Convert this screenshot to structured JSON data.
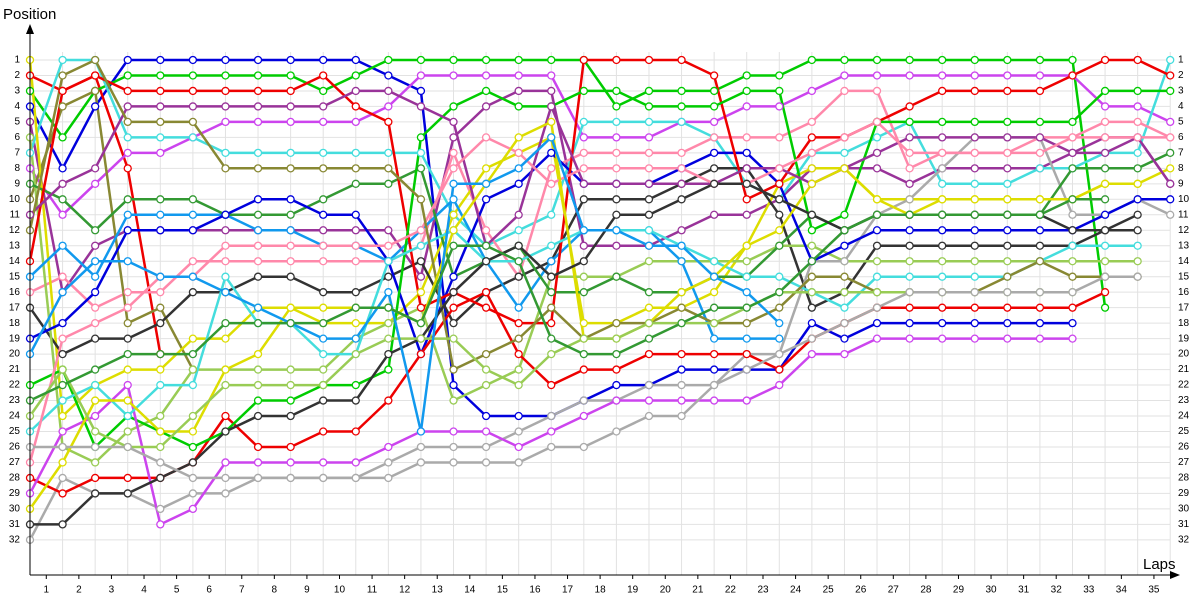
{
  "chart_data": {
    "type": "line",
    "y_label": "Position",
    "x_label": "Laps",
    "x": [
      0,
      1,
      2,
      3,
      4,
      5,
      6,
      7,
      8,
      9,
      10,
      11,
      12,
      13,
      14,
      15,
      16,
      17,
      18,
      19,
      20,
      21,
      22,
      23,
      24,
      25,
      26,
      27,
      28,
      29,
      30,
      31,
      32,
      33,
      34,
      35
    ],
    "xlim": [
      0,
      35.3
    ],
    "ylim": [
      34.27,
      -1.26
    ],
    "grid": true,
    "yticks": [
      1,
      2,
      3,
      4,
      5,
      6,
      7,
      8,
      9,
      10,
      11,
      12,
      13,
      14,
      15,
      16,
      17,
      18,
      19,
      20,
      21,
      22,
      23,
      24,
      25,
      26,
      27,
      28,
      29,
      30,
      31,
      32
    ],
    "xticks": [
      {
        "value": 0.5,
        "label": "1"
      },
      {
        "value": 1.5,
        "label": "2"
      },
      {
        "value": 2.5,
        "label": "3"
      },
      {
        "value": 3.5,
        "label": "4"
      },
      {
        "value": 4.5,
        "label": "5"
      },
      {
        "value": 5.5,
        "label": "6"
      },
      {
        "value": 6.5,
        "label": "7"
      },
      {
        "value": 7.5,
        "label": "8"
      },
      {
        "value": 8.5,
        "label": "9"
      },
      {
        "value": 9.5,
        "label": "10"
      },
      {
        "value": 10.5,
        "label": "11"
      },
      {
        "value": 11.5,
        "label": "12"
      },
      {
        "value": 12.5,
        "label": "13"
      },
      {
        "value": 13.5,
        "label": "14"
      },
      {
        "value": 14.5,
        "label": "15"
      },
      {
        "value": 15.5,
        "label": "16"
      },
      {
        "value": 16.5,
        "label": "17"
      },
      {
        "value": 17.5,
        "label": "18"
      },
      {
        "value": 18.5,
        "label": "19"
      },
      {
        "value": 19.5,
        "label": "20"
      },
      {
        "value": 20.5,
        "label": "21"
      },
      {
        "value": 21.5,
        "label": "22"
      },
      {
        "value": 22.5,
        "label": "23"
      },
      {
        "value": 23.5,
        "label": "24"
      },
      {
        "value": 24.5,
        "label": "25"
      },
      {
        "value": 25.5,
        "label": "26"
      },
      {
        "value": 26.5,
        "label": "27"
      },
      {
        "value": 27.5,
        "label": "28"
      },
      {
        "value": 28.5,
        "label": "29"
      },
      {
        "value": 29.5,
        "label": "30"
      },
      {
        "value": 30.5,
        "label": "31"
      },
      {
        "value": 31.5,
        "label": "32"
      },
      {
        "value": 32.5,
        "label": "33"
      },
      {
        "value": 33.5,
        "label": "34"
      },
      {
        "value": 34.5,
        "label": "35"
      }
    ],
    "series": [
      {
        "color": "#0000dd",
        "values": [
          4,
          8,
          4,
          1,
          1,
          1,
          1,
          1,
          1,
          1,
          1,
          2,
          3,
          22,
          24,
          24,
          24,
          23,
          22,
          22,
          21,
          21,
          21,
          21,
          18,
          19,
          18,
          18,
          18,
          18,
          18,
          18,
          18,
          null,
          null,
          null
        ]
      },
      {
        "color": "#ee0000",
        "values": [
          2,
          3,
          2,
          8,
          20,
          null,
          null,
          null,
          null,
          null,
          null,
          null,
          null,
          null,
          null,
          null,
          null,
          null,
          null,
          null,
          null,
          null,
          null,
          null,
          null,
          null,
          null,
          null,
          null,
          null,
          null,
          null,
          null,
          null,
          null,
          null
        ]
      },
      {
        "color": "#00cc00",
        "values": [
          3,
          6,
          3,
          2,
          2,
          2,
          2,
          2,
          2,
          3,
          2,
          1,
          1,
          1,
          1,
          1,
          1,
          1,
          4,
          3,
          3,
          3,
          2,
          2,
          1,
          1,
          1,
          1,
          1,
          1,
          1,
          1,
          1,
          17,
          null,
          null
        ]
      },
      {
        "color": "#993399",
        "values": [
          5,
          16,
          13,
          12,
          12,
          12,
          12,
          12,
          12,
          12,
          12,
          12,
          15,
          6,
          4,
          3,
          3,
          13,
          13,
          13,
          12,
          11,
          11,
          10,
          8,
          8,
          8,
          9,
          8,
          8,
          8,
          8,
          7,
          6,
          6,
          9
        ]
      },
      {
        "color": "#cc44ee",
        "values": [
          8,
          11,
          9,
          7,
          7,
          6,
          5,
          5,
          5,
          5,
          5,
          4,
          2,
          2,
          2,
          2,
          2,
          6,
          6,
          6,
          5,
          5,
          4,
          4,
          3,
          2,
          2,
          2,
          2,
          2,
          2,
          2,
          2,
          4,
          4,
          5
        ]
      },
      {
        "color": "#44dddd",
        "values": [
          7,
          1,
          1,
          6,
          6,
          6,
          7,
          7,
          7,
          7,
          7,
          7,
          7,
          11,
          13,
          12,
          11,
          5,
          5,
          5,
          5,
          6,
          9,
          10,
          7,
          7,
          6,
          5,
          9,
          9,
          9,
          8,
          8,
          7,
          7,
          1
        ]
      },
      {
        "color": "#ff88aa",
        "values": [
          16,
          15,
          17,
          16,
          16,
          14,
          14,
          14,
          14,
          14,
          14,
          14,
          13,
          7,
          12,
          15,
          8,
          7,
          7,
          7,
          7,
          6,
          6,
          6,
          5,
          3,
          3,
          8,
          7,
          7,
          7,
          6,
          6,
          5,
          5,
          6
        ]
      },
      {
        "color": "#888833",
        "values": [
          10,
          4,
          3,
          18,
          17,
          21,
          null,
          null,
          null,
          null,
          null,
          null,
          null,
          null,
          null,
          null,
          null,
          null,
          null,
          null,
          null,
          null,
          null,
          null,
          null,
          null,
          null,
          null,
          null,
          null,
          null,
          null,
          null,
          null,
          null,
          null
        ]
      },
      {
        "color": "#dddd00",
        "values": [
          1,
          24,
          22,
          21,
          21,
          19,
          19,
          17,
          17,
          18,
          18,
          18,
          16,
          11,
          8,
          7,
          6,
          18,
          18,
          17,
          17,
          16,
          13,
          9,
          8,
          8,
          10,
          10,
          10,
          10,
          10,
          10,
          10,
          9,
          9,
          8
        ]
      },
      {
        "color": "#333333",
        "values": [
          17,
          20,
          19,
          19,
          18,
          16,
          16,
          15,
          15,
          16,
          16,
          15,
          14,
          18,
          16,
          15,
          14,
          10,
          10,
          10,
          9,
          8,
          8,
          11,
          17,
          16,
          13,
          13,
          13,
          13,
          13,
          13,
          13,
          12,
          12,
          null
        ]
      },
      {
        "color": "#99cc55",
        "values": [
          6,
          26,
          27,
          25,
          24,
          21,
          21,
          21,
          21,
          21,
          19,
          18,
          17,
          23,
          22,
          21,
          15,
          15,
          15,
          14,
          14,
          14,
          14,
          13,
          13,
          14,
          14,
          14,
          14,
          14,
          14,
          14,
          14,
          14,
          14,
          null
        ]
      },
      {
        "color": "#1199ee",
        "values": [
          15,
          13,
          15,
          11,
          11,
          11,
          11,
          12,
          12,
          13,
          13,
          14,
          12,
          10,
          14,
          17,
          14,
          12,
          12,
          12,
          14,
          19,
          19,
          19,
          null,
          null,
          null,
          null,
          null,
          null,
          null,
          null,
          null,
          null,
          null,
          null
        ]
      },
      {
        "color": "#aaaaaa",
        "values": [
          32,
          28,
          29,
          29,
          30,
          29,
          29,
          28,
          28,
          28,
          28,
          27,
          26,
          26,
          26,
          25,
          24,
          23,
          23,
          22,
          22,
          22,
          20,
          20,
          14,
          14,
          11,
          10,
          8,
          6,
          6,
          6,
          11,
          11,
          10,
          11
        ]
      },
      {
        "color": "#339933",
        "values": [
          9,
          10,
          12,
          10,
          10,
          10,
          11,
          11,
          11,
          10,
          9,
          9,
          8,
          15,
          14,
          13,
          16,
          16,
          15,
          16,
          16,
          15,
          15,
          13,
          11,
          12,
          11,
          11,
          11,
          11,
          11,
          11,
          8,
          8,
          8,
          7
        ]
      },
      {
        "color": "#0000dd",
        "values": [
          19,
          18,
          16,
          12,
          12,
          12,
          11,
          10,
          10,
          11,
          11,
          14,
          20,
          15,
          10,
          9,
          7,
          9,
          9,
          9,
          8,
          7,
          7,
          9,
          14,
          13,
          12,
          12,
          12,
          12,
          12,
          12,
          12,
          11,
          10,
          10
        ]
      },
      {
        "color": "#ee0000",
        "values": [
          14,
          3,
          2,
          3,
          3,
          3,
          3,
          3,
          3,
          2,
          4,
          5,
          17,
          16,
          17,
          18,
          18,
          1,
          1,
          1,
          1,
          2,
          10,
          9,
          6,
          6,
          5,
          4,
          3,
          3,
          3,
          3,
          2,
          1,
          1,
          2
        ]
      },
      {
        "color": "#ee0000",
        "values": [
          28,
          29,
          28,
          28,
          28,
          27,
          24,
          26,
          26,
          25,
          25,
          23,
          20,
          17,
          16,
          20,
          22,
          21,
          21,
          20,
          20,
          20,
          20,
          21,
          19,
          18,
          17,
          17,
          17,
          17,
          17,
          17,
          17,
          16,
          null,
          null
        ]
      },
      {
        "color": "#00cc00",
        "values": [
          22,
          21,
          26,
          24,
          25,
          26,
          25,
          23,
          23,
          22,
          22,
          21,
          6,
          4,
          3,
          4,
          4,
          3,
          3,
          4,
          4,
          4,
          3,
          3,
          12,
          11,
          5,
          5,
          5,
          5,
          5,
          5,
          5,
          3,
          3,
          3
        ]
      },
      {
        "color": "#993399",
        "values": [
          11,
          9,
          8,
          4,
          4,
          4,
          4,
          4,
          4,
          4,
          3,
          3,
          4,
          5,
          13,
          11,
          4,
          9,
          9,
          9,
          9,
          9,
          8,
          8,
          9,
          8,
          7,
          6,
          6,
          6,
          6,
          6,
          7,
          7,
          6,
          9
        ]
      },
      {
        "color": "#cc44ee",
        "values": [
          29,
          25,
          24,
          22,
          31,
          30,
          27,
          27,
          27,
          27,
          27,
          26,
          25,
          25,
          25,
          26,
          25,
          24,
          23,
          23,
          23,
          23,
          23,
          22,
          20,
          20,
          19,
          19,
          19,
          19,
          19,
          19,
          19,
          null,
          null,
          null
        ]
      },
      {
        "color": "#44dddd",
        "values": [
          25,
          23,
          22,
          24,
          22,
          22,
          15,
          18,
          18,
          20,
          20,
          14,
          13,
          12,
          14,
          14,
          13,
          12,
          12,
          12,
          13,
          14,
          15,
          15,
          16,
          17,
          15,
          15,
          15,
          15,
          15,
          14,
          13,
          13,
          13,
          null
        ]
      },
      {
        "color": "#ff88aa",
        "values": [
          27,
          19,
          18,
          17,
          15,
          15,
          13,
          13,
          13,
          13,
          13,
          13,
          12,
          8,
          6,
          7,
          9,
          8,
          8,
          8,
          8,
          9,
          9,
          8,
          7,
          6,
          5,
          7,
          7,
          7,
          7,
          7,
          6,
          6,
          6,
          6
        ]
      },
      {
        "color": "#888833",
        "values": [
          12,
          2,
          1,
          5,
          5,
          5,
          8,
          8,
          8,
          8,
          8,
          8,
          10,
          21,
          20,
          19,
          17,
          19,
          18,
          18,
          17,
          18,
          18,
          17,
          15,
          15,
          16,
          16,
          16,
          16,
          15,
          14,
          15,
          15,
          15,
          null
        ]
      },
      {
        "color": "#dddd00",
        "values": [
          30,
          27,
          23,
          23,
          25,
          25,
          21,
          20,
          17,
          17,
          17,
          17,
          18,
          12,
          9,
          6,
          5,
          19,
          19,
          18,
          16,
          15,
          13,
          12,
          9,
          8,
          10,
          11,
          10,
          10,
          10,
          10,
          10,
          9,
          9,
          null
        ]
      },
      {
        "color": "#333333",
        "values": [
          31,
          31,
          29,
          29,
          28,
          27,
          25,
          24,
          24,
          23,
          23,
          20,
          19,
          16,
          14,
          13,
          15,
          14,
          11,
          11,
          10,
          9,
          9,
          10,
          11,
          12,
          11,
          11,
          11,
          11,
          11,
          11,
          12,
          12,
          11,
          null
        ]
      },
      {
        "color": "#99cc55",
        "values": [
          24,
          21,
          25,
          26,
          26,
          24,
          22,
          22,
          22,
          22,
          20,
          19,
          19,
          19,
          21,
          22,
          20,
          19,
          19,
          18,
          18,
          18,
          17,
          16,
          16,
          16,
          16,
          16,
          16,
          16,
          16,
          16,
          16,
          null,
          null,
          null
        ]
      },
      {
        "color": "#1199ee",
        "values": [
          20,
          16,
          14,
          14,
          15,
          15,
          16,
          17,
          18,
          19,
          19,
          16,
          25,
          9,
          9,
          8,
          6,
          12,
          12,
          13,
          13,
          15,
          16,
          18,
          null,
          null,
          null,
          null,
          null,
          null,
          null,
          null,
          null,
          null,
          null,
          null
        ]
      },
      {
        "color": "#aaaaaa",
        "values": [
          26,
          26,
          26,
          26,
          27,
          28,
          28,
          28,
          28,
          28,
          28,
          28,
          27,
          27,
          27,
          27,
          26,
          26,
          25,
          24,
          24,
          22,
          21,
          20,
          19,
          18,
          17,
          16,
          16,
          16,
          16,
          16,
          16,
          15,
          15,
          null
        ]
      },
      {
        "color": "#339933",
        "values": [
          23,
          22,
          21,
          20,
          20,
          20,
          18,
          18,
          18,
          18,
          17,
          17,
          18,
          13,
          13,
          14,
          19,
          20,
          20,
          19,
          18,
          17,
          17,
          16,
          14,
          12,
          11,
          11,
          11,
          11,
          11,
          11,
          10,
          10,
          null,
          null
        ]
      }
    ]
  }
}
